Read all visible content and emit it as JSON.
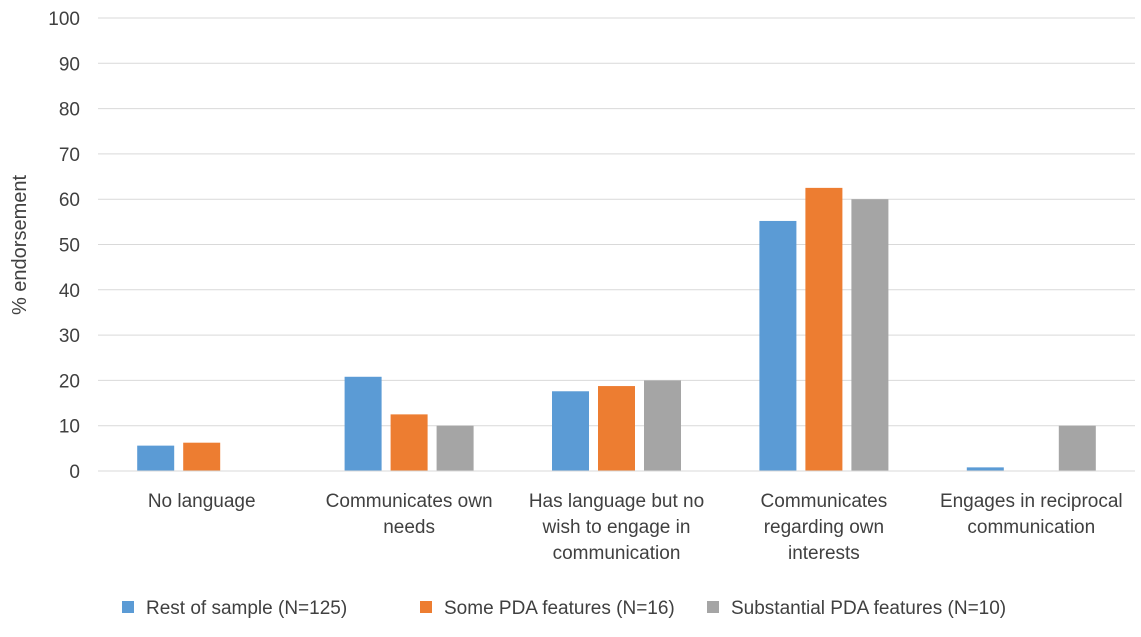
{
  "chart_data": {
    "type": "bar",
    "title": "",
    "xlabel": "",
    "ylabel": "% endorsement",
    "ylim": [
      0,
      100
    ],
    "yticks": [
      0,
      10,
      20,
      30,
      40,
      50,
      60,
      70,
      80,
      90,
      100
    ],
    "grid": true,
    "legend_position": "bottom",
    "categories": [
      [
        "No language"
      ],
      [
        "Communicates own",
        "needs"
      ],
      [
        "Has language but no",
        "wish to engage in",
        "communication"
      ],
      [
        "Communicates",
        "regarding own",
        "interests"
      ],
      [
        "Engages in reciprocal",
        "communication"
      ]
    ],
    "series": [
      {
        "name": "Rest of sample (N=125)",
        "color": "#5b9bd5",
        "values": [
          5.6,
          20.8,
          17.6,
          55.2,
          0.8
        ]
      },
      {
        "name": "Some PDA features (N=16)",
        "color": "#ed7d31",
        "values": [
          6.25,
          12.5,
          18.75,
          62.5,
          0
        ]
      },
      {
        "name": "Substantial PDA features (N=10)",
        "color": "#a5a5a5",
        "values": [
          0,
          10,
          20,
          60,
          10
        ]
      }
    ]
  }
}
